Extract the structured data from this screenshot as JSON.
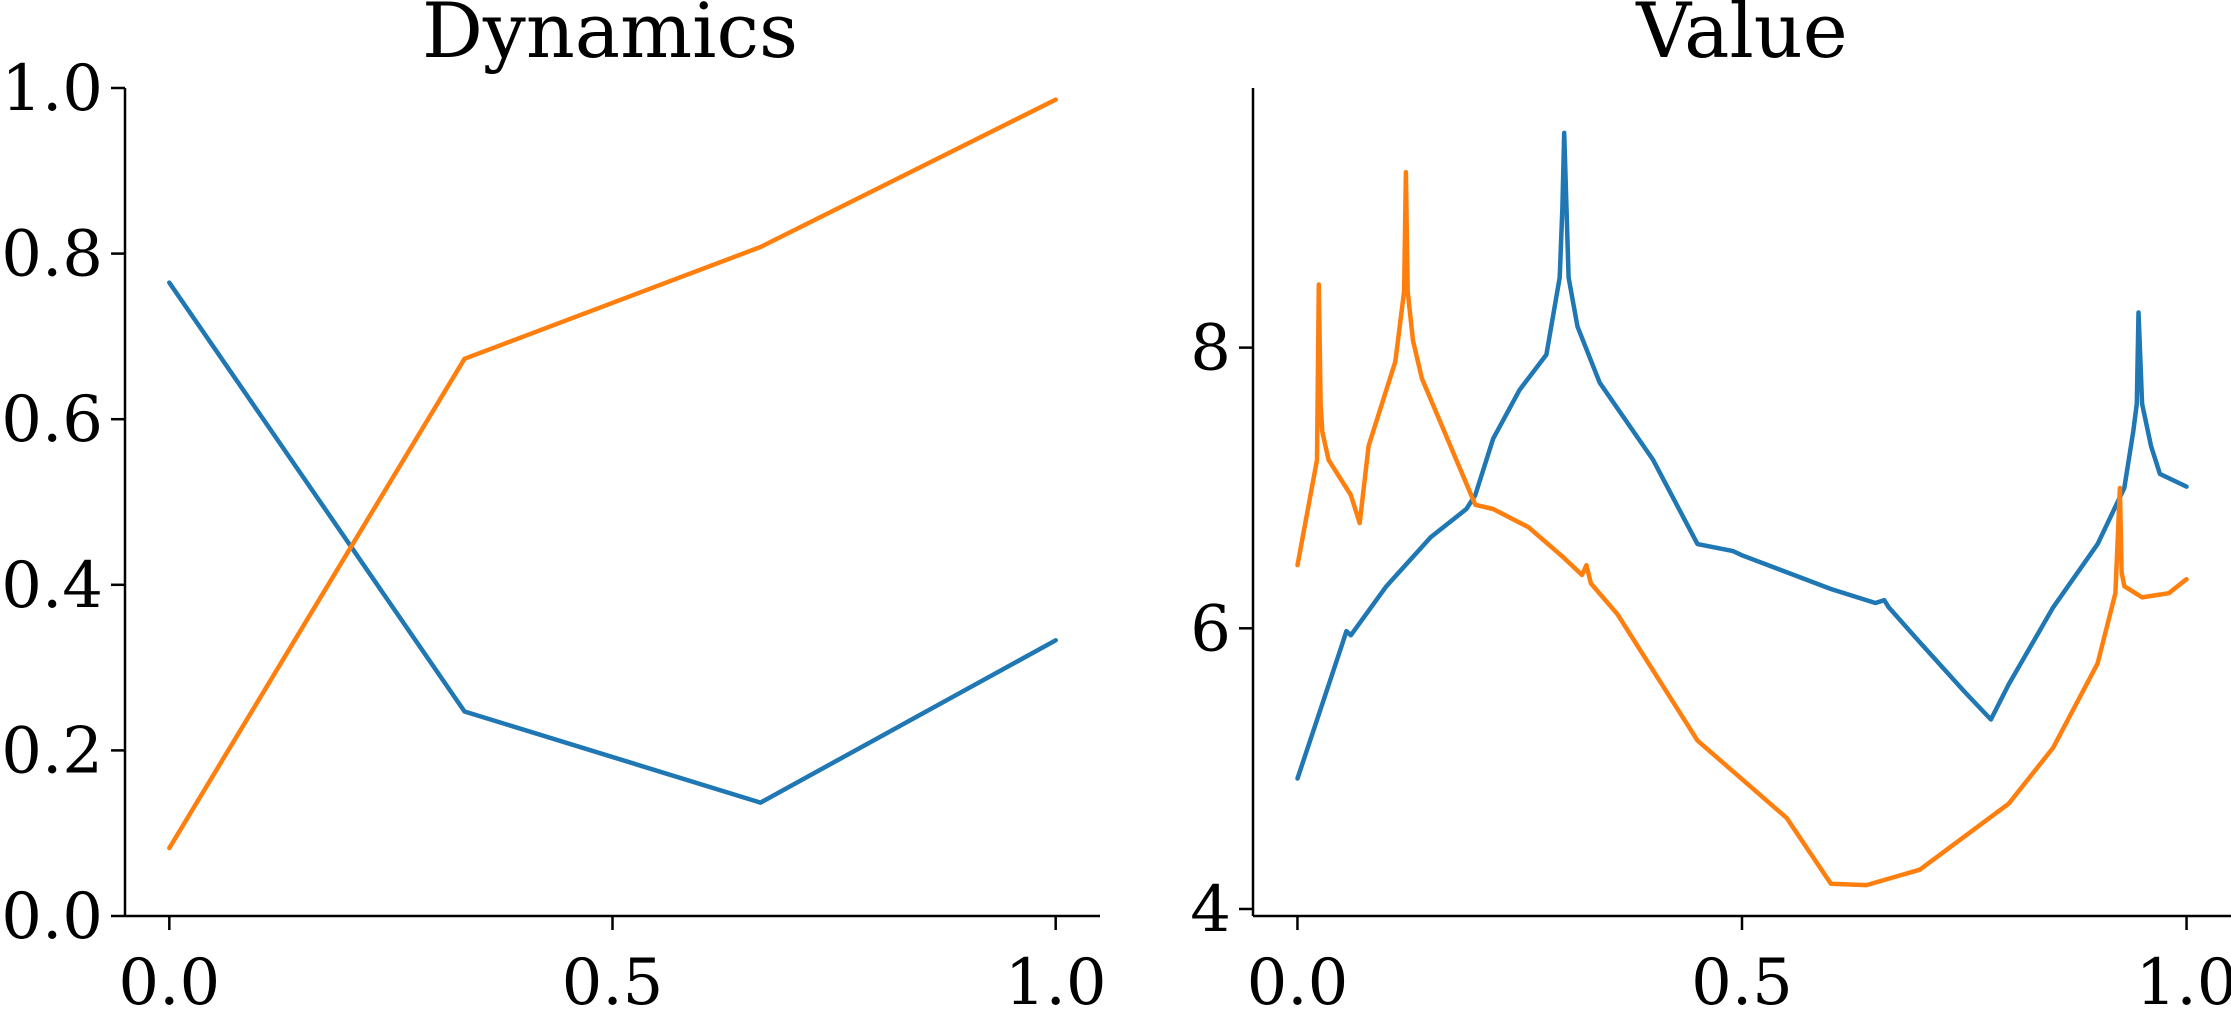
{
  "colors": {
    "blue": "#1f77b4",
    "orange": "#ff7f0e"
  },
  "chart_data": [
    {
      "type": "line",
      "title": "Dynamics",
      "xlabel": "",
      "ylabel": "",
      "xlim": [
        -0.05,
        1.05
      ],
      "ylim": [
        0.0,
        1.0
      ],
      "xticks": [
        0.0,
        0.5,
        1.0
      ],
      "xtick_labels": [
        "0.0",
        "0.5",
        "1.0"
      ],
      "yticks": [
        0.0,
        0.2,
        0.4,
        0.6,
        0.8,
        1.0
      ],
      "ytick_labels": [
        "0.0",
        "0.2",
        "0.4",
        "0.6",
        "0.8",
        "1.0"
      ],
      "grid": false,
      "legend": "none",
      "series": [
        {
          "color": "#1f77b4",
          "x": [
            0.0,
            0.333,
            0.667,
            1.0
          ],
          "y": [
            0.765,
            0.247,
            0.137,
            0.333
          ]
        },
        {
          "color": "#ff7f0e",
          "x": [
            0.0,
            0.333,
            0.667,
            1.0
          ],
          "y": [
            0.082,
            0.673,
            0.808,
            0.986
          ]
        }
      ]
    },
    {
      "type": "line",
      "title": "Value",
      "xlabel": "",
      "ylabel": "",
      "xlim": [
        -0.05,
        1.05
      ],
      "ylim": [
        3.95,
        9.85
      ],
      "xticks": [
        0.0,
        0.5,
        1.0
      ],
      "xtick_labels": [
        "0.0",
        "0.5",
        "1.0"
      ],
      "yticks": [
        4,
        6,
        8
      ],
      "ytick_labels": [
        "4",
        "6",
        "8"
      ],
      "grid": false,
      "legend": "none",
      "series": [
        {
          "color": "#1f77b4",
          "x": [
            0.0,
            0.05,
            0.055,
            0.06,
            0.1,
            0.15,
            0.19,
            0.2,
            0.22,
            0.25,
            0.28,
            0.295,
            0.298,
            0.3,
            0.305,
            0.315,
            0.34,
            0.4,
            0.45,
            0.49,
            0.5,
            0.6,
            0.65,
            0.66,
            0.665,
            0.7,
            0.75,
            0.78,
            0.8,
            0.85,
            0.9,
            0.93,
            0.94,
            0.944,
            0.946,
            0.95,
            0.96,
            0.97,
            1.0
          ],
          "y": [
            4.93,
            5.88,
            5.98,
            5.95,
            6.3,
            6.65,
            6.85,
            6.95,
            7.35,
            7.7,
            7.95,
            8.5,
            9.0,
            9.53,
            8.5,
            8.15,
            7.75,
            7.2,
            6.6,
            6.55,
            6.52,
            6.28,
            6.18,
            6.2,
            6.15,
            5.9,
            5.55,
            5.35,
            5.6,
            6.15,
            6.6,
            7.0,
            7.4,
            7.6,
            8.25,
            7.6,
            7.3,
            7.1,
            7.01
          ]
        },
        {
          "color": "#ff7f0e",
          "x": [
            0.0,
            0.022,
            0.024,
            0.026,
            0.028,
            0.035,
            0.06,
            0.07,
            0.08,
            0.11,
            0.12,
            0.122,
            0.124,
            0.13,
            0.14,
            0.2,
            0.22,
            0.26,
            0.3,
            0.32,
            0.325,
            0.33,
            0.36,
            0.45,
            0.55,
            0.6,
            0.64,
            0.7,
            0.8,
            0.85,
            0.9,
            0.92,
            0.925,
            0.927,
            0.93,
            0.95,
            0.98,
            1.0
          ],
          "y": [
            6.45,
            7.2,
            8.45,
            7.6,
            7.4,
            7.2,
            6.95,
            6.75,
            7.3,
            7.9,
            8.4,
            9.25,
            8.4,
            8.05,
            7.78,
            6.88,
            6.85,
            6.72,
            6.5,
            6.38,
            6.45,
            6.32,
            6.1,
            5.2,
            4.65,
            4.18,
            4.17,
            4.28,
            4.75,
            5.15,
            5.75,
            6.25,
            7.0,
            6.4,
            6.3,
            6.22,
            6.25,
            6.35
          ]
        }
      ]
    }
  ]
}
